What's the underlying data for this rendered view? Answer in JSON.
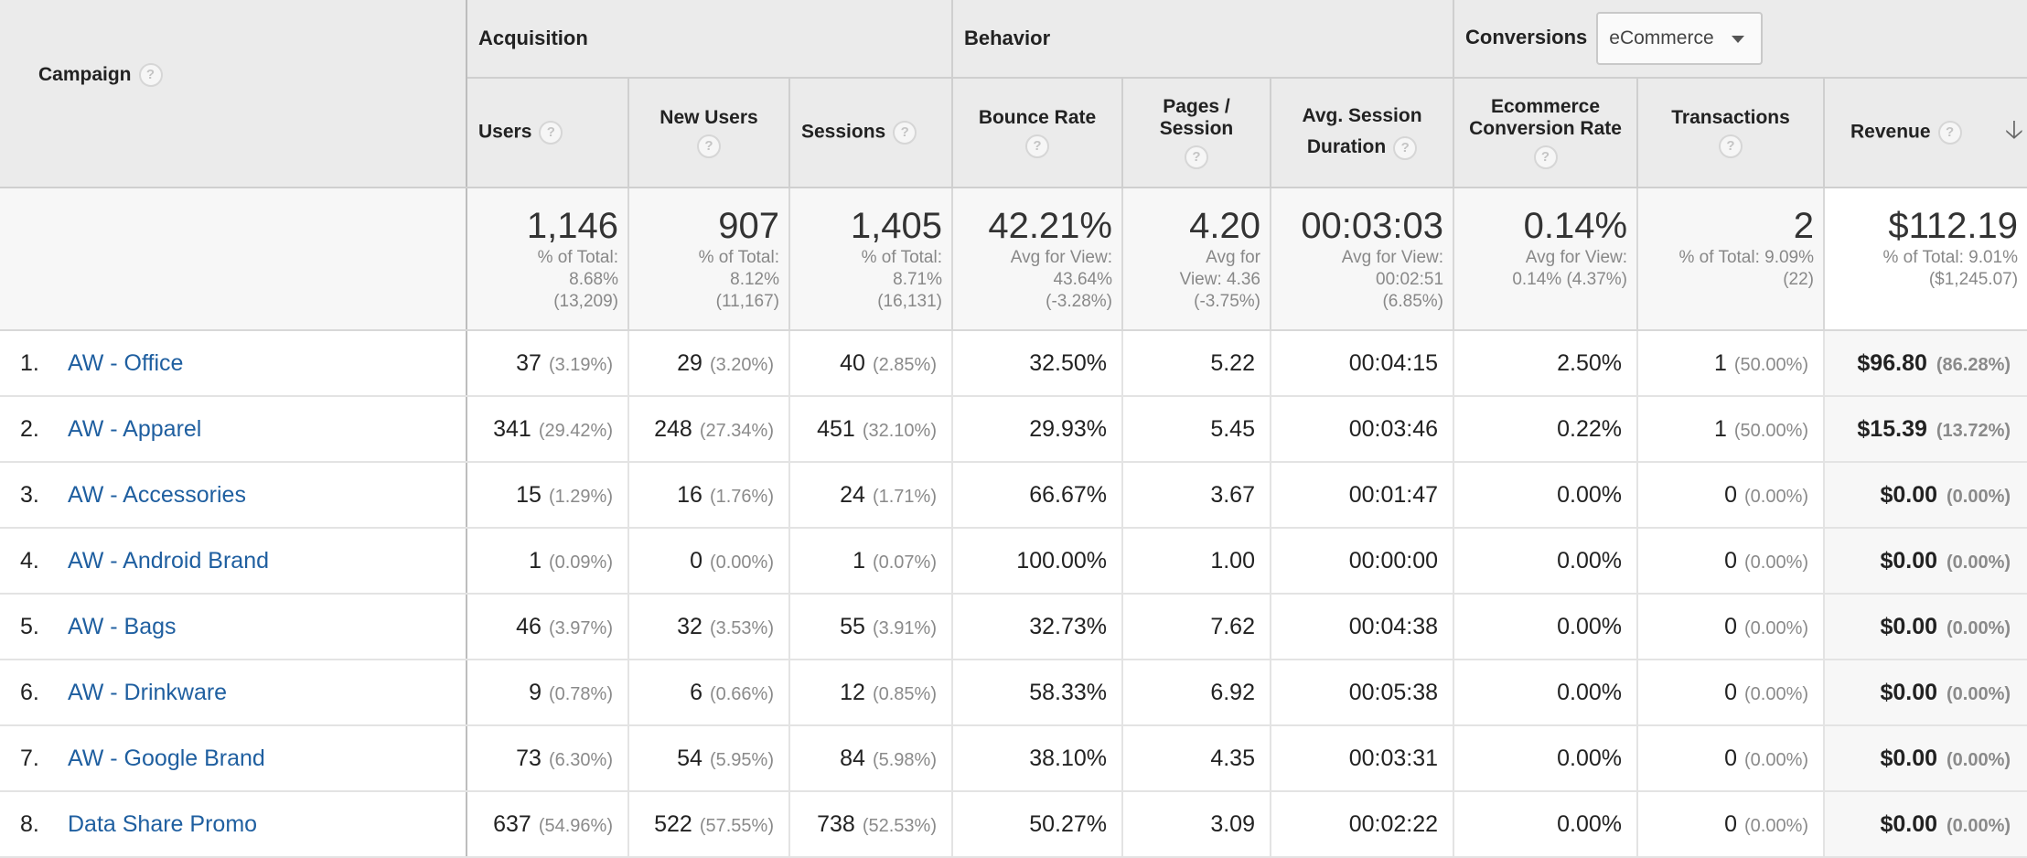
{
  "header": {
    "campaign_label": "Campaign",
    "groups": {
      "acquisition": "Acquisition",
      "behavior": "Behavior",
      "conversions": "Conversions"
    },
    "conversions_dropdown": "eCommerce",
    "columns": {
      "users": "Users",
      "new_users": "New Users",
      "sessions": "Sessions",
      "bounce_rate": "Bounce Rate",
      "pages_session_1": "Pages /",
      "pages_session_2": "Session",
      "avg_session_1": "Avg. Session",
      "avg_session_2": "Duration",
      "ecom_rate_1": "Ecommerce",
      "ecom_rate_2": "Conversion Rate",
      "transactions": "Transactions",
      "revenue": "Revenue"
    },
    "help_glyph": "?",
    "sort_glyph": "🡣"
  },
  "totals": {
    "users": {
      "value": "1,146",
      "l1": "% of Total:",
      "l2": "8.68%",
      "l3": "(13,209)"
    },
    "new_users": {
      "value": "907",
      "l1": "% of Total:",
      "l2": "8.12%",
      "l3": "(11,167)"
    },
    "sessions": {
      "value": "1,405",
      "l1": "% of Total:",
      "l2": "8.71%",
      "l3": "(16,131)"
    },
    "bounce_rate": {
      "value": "42.21%",
      "l1": "Avg for View:",
      "l2": "43.64%",
      "l3": "(-3.28%)"
    },
    "pages_session": {
      "value": "4.20",
      "l1": "Avg for",
      "l2": "View: 4.36",
      "l3": "(-3.75%)"
    },
    "avg_session": {
      "value": "00:03:03",
      "l1": "Avg for View:",
      "l2": "00:02:51",
      "l3": "(6.85%)"
    },
    "ecom_rate": {
      "value": "0.14%",
      "l1": "Avg for View:",
      "l2": "0.14% (4.37%)",
      "l3": ""
    },
    "transactions": {
      "value": "2",
      "l1": "% of Total: 9.09%",
      "l2": "(22)",
      "l3": ""
    },
    "revenue": {
      "value": "$112.19",
      "l1": "% of Total: 9.01%",
      "l2": "($1,245.07)",
      "l3": ""
    }
  },
  "rows": [
    {
      "idx": "1.",
      "campaign": "AW - Office",
      "users": "37",
      "users_pct": "(3.19%)",
      "new_users": "29",
      "new_users_pct": "(3.20%)",
      "sessions": "40",
      "sessions_pct": "(2.85%)",
      "bounce": "32.50%",
      "pages": "5.22",
      "duration": "00:04:15",
      "ecom": "2.50%",
      "trans": "1",
      "trans_pct": "(50.00%)",
      "revenue": "$96.80",
      "revenue_pct": "(86.28%)"
    },
    {
      "idx": "2.",
      "campaign": "AW - Apparel",
      "users": "341",
      "users_pct": "(29.42%)",
      "new_users": "248",
      "new_users_pct": "(27.34%)",
      "sessions": "451",
      "sessions_pct": "(32.10%)",
      "bounce": "29.93%",
      "pages": "5.45",
      "duration": "00:03:46",
      "ecom": "0.22%",
      "trans": "1",
      "trans_pct": "(50.00%)",
      "revenue": "$15.39",
      "revenue_pct": "(13.72%)"
    },
    {
      "idx": "3.",
      "campaign": "AW - Accessories",
      "users": "15",
      "users_pct": "(1.29%)",
      "new_users": "16",
      "new_users_pct": "(1.76%)",
      "sessions": "24",
      "sessions_pct": "(1.71%)",
      "bounce": "66.67%",
      "pages": "3.67",
      "duration": "00:01:47",
      "ecom": "0.00%",
      "trans": "0",
      "trans_pct": "(0.00%)",
      "revenue": "$0.00",
      "revenue_pct": "(0.00%)"
    },
    {
      "idx": "4.",
      "campaign": "AW - Android Brand",
      "users": "1",
      "users_pct": "(0.09%)",
      "new_users": "0",
      "new_users_pct": "(0.00%)",
      "sessions": "1",
      "sessions_pct": "(0.07%)",
      "bounce": "100.00%",
      "pages": "1.00",
      "duration": "00:00:00",
      "ecom": "0.00%",
      "trans": "0",
      "trans_pct": "(0.00%)",
      "revenue": "$0.00",
      "revenue_pct": "(0.00%)"
    },
    {
      "idx": "5.",
      "campaign": "AW - Bags",
      "users": "46",
      "users_pct": "(3.97%)",
      "new_users": "32",
      "new_users_pct": "(3.53%)",
      "sessions": "55",
      "sessions_pct": "(3.91%)",
      "bounce": "32.73%",
      "pages": "7.62",
      "duration": "00:04:38",
      "ecom": "0.00%",
      "trans": "0",
      "trans_pct": "(0.00%)",
      "revenue": "$0.00",
      "revenue_pct": "(0.00%)"
    },
    {
      "idx": "6.",
      "campaign": "AW - Drinkware",
      "users": "9",
      "users_pct": "(0.78%)",
      "new_users": "6",
      "new_users_pct": "(0.66%)",
      "sessions": "12",
      "sessions_pct": "(0.85%)",
      "bounce": "58.33%",
      "pages": "6.92",
      "duration": "00:05:38",
      "ecom": "0.00%",
      "trans": "0",
      "trans_pct": "(0.00%)",
      "revenue": "$0.00",
      "revenue_pct": "(0.00%)"
    },
    {
      "idx": "7.",
      "campaign": "AW - Google Brand",
      "users": "73",
      "users_pct": "(6.30%)",
      "new_users": "54",
      "new_users_pct": "(5.95%)",
      "sessions": "84",
      "sessions_pct": "(5.98%)",
      "bounce": "38.10%",
      "pages": "4.35",
      "duration": "00:03:31",
      "ecom": "0.00%",
      "trans": "0",
      "trans_pct": "(0.00%)",
      "revenue": "$0.00",
      "revenue_pct": "(0.00%)"
    },
    {
      "idx": "8.",
      "campaign": "Data Share Promo",
      "users": "637",
      "users_pct": "(54.96%)",
      "new_users": "522",
      "new_users_pct": "(57.55%)",
      "sessions": "738",
      "sessions_pct": "(52.53%)",
      "bounce": "50.27%",
      "pages": "3.09",
      "duration": "00:02:22",
      "ecom": "0.00%",
      "trans": "0",
      "trans_pct": "(0.00%)",
      "revenue": "$0.00",
      "revenue_pct": "(0.00%)"
    }
  ]
}
